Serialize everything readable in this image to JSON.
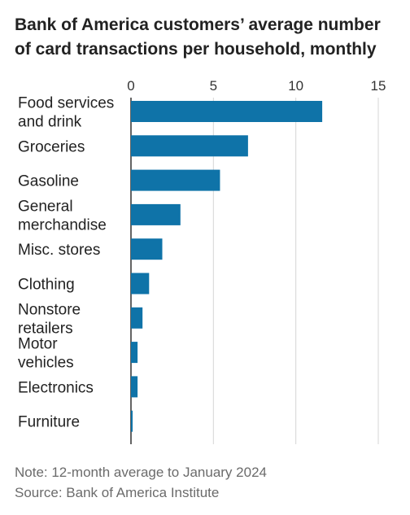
{
  "chart_data": {
    "type": "bar",
    "orientation": "horizontal",
    "title": "Bank of America customers’ average number of card transactions per household, monthly",
    "categories": [
      "Food services and drink",
      "Groceries",
      "Gasoline",
      "General merchandise",
      "Misc. stores",
      "Clothing",
      "Nonstore retailers",
      "Motor vehicles",
      "Electronics",
      "Furniture"
    ],
    "category_lines": [
      [
        "Food services",
        "and drink"
      ],
      [
        "Groceries"
      ],
      [
        "Gasoline"
      ],
      [
        "General",
        "merchandise"
      ],
      [
        "Misc. stores"
      ],
      [
        "Clothing"
      ],
      [
        "Nonstore",
        "retailers"
      ],
      [
        "Motor",
        "vehicles"
      ],
      [
        "Electronics"
      ],
      [
        "Furniture"
      ]
    ],
    "values": [
      11.6,
      7.1,
      5.4,
      3.0,
      1.9,
      1.1,
      0.7,
      0.4,
      0.4,
      0.1
    ],
    "xlim": [
      0,
      15
    ],
    "xticks": [
      0,
      5,
      10,
      15
    ],
    "xticks_position": "top",
    "grid": true,
    "bar_color": "#0f73a8",
    "xlabel": "",
    "ylabel": ""
  },
  "notes": {
    "note": "Note: 12-month average to January 2024",
    "source": "Source: Bank of America Institute"
  }
}
